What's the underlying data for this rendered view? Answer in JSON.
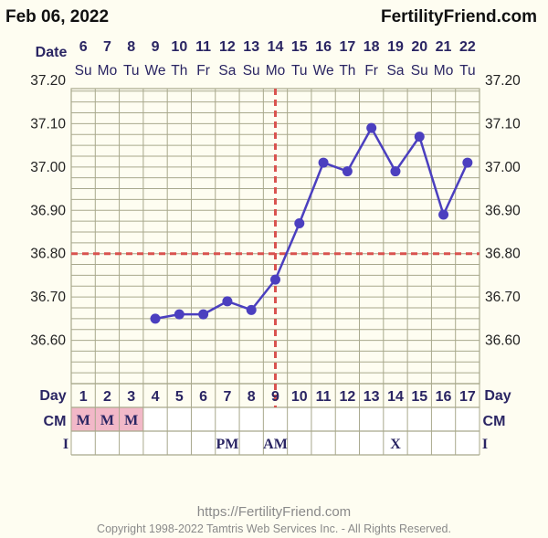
{
  "header": {
    "date": "Feb 06, 2022",
    "site": "FertilityFriend.com"
  },
  "labels": {
    "date_row": "Date",
    "day_row": "Day",
    "cm_row": "CM",
    "i_row": "I"
  },
  "footer": {
    "url": "https://FertilityFriend.com",
    "copyright": "Copyright 1998-2022 Tamtris Web Services Inc. - All Rights Reserved."
  },
  "colors": {
    "line": "#4b3fbf",
    "coverline": "#d9534f",
    "grid": "#a8a88c",
    "cm_fill": "#f2b8c8",
    "text_dark": "#2a2563"
  },
  "chart_data": {
    "type": "line",
    "ylim": [
      36.5,
      37.3
    ],
    "yticks": [
      36.6,
      36.7,
      36.8,
      36.9,
      37.0,
      37.1,
      37.2
    ],
    "ytick_labels": [
      "36.60",
      "36.70",
      "36.80",
      "36.90",
      "37.00",
      "37.10",
      "37.20"
    ],
    "dates": [
      "6",
      "7",
      "8",
      "9",
      "10",
      "11",
      "12",
      "13",
      "14",
      "15",
      "16",
      "17",
      "18",
      "19",
      "20",
      "21",
      "22"
    ],
    "weekdays": [
      "Su",
      "Mo",
      "Tu",
      "We",
      "Th",
      "Fr",
      "Sa",
      "Su",
      "Mo",
      "Tu",
      "We",
      "Th",
      "Fr",
      "Sa",
      "Su",
      "Mo",
      "Tu"
    ],
    "cycle_days": [
      "1",
      "2",
      "3",
      "4",
      "5",
      "6",
      "7",
      "8",
      "9",
      "10",
      "11",
      "12",
      "13",
      "14",
      "15",
      "16",
      "17"
    ],
    "series": [
      {
        "values": [
          null,
          null,
          null,
          36.65,
          36.66,
          36.66,
          36.69,
          36.67,
          36.74,
          36.87,
          37.01,
          36.99,
          37.09,
          36.99,
          37.07,
          36.89,
          37.01
        ]
      }
    ],
    "coverline": 36.8,
    "ovulation_day": 9,
    "cm": [
      "M",
      "M",
      "M",
      "",
      "",
      "",
      "",
      "",
      "",
      "",
      "",
      "",
      "",
      "",
      "",
      "",
      ""
    ],
    "intercourse": [
      "",
      "",
      "",
      "",
      "",
      "",
      "PM",
      "",
      "AM",
      "",
      "",
      "",
      "",
      "X",
      "",
      "",
      ""
    ],
    "grid": true
  }
}
